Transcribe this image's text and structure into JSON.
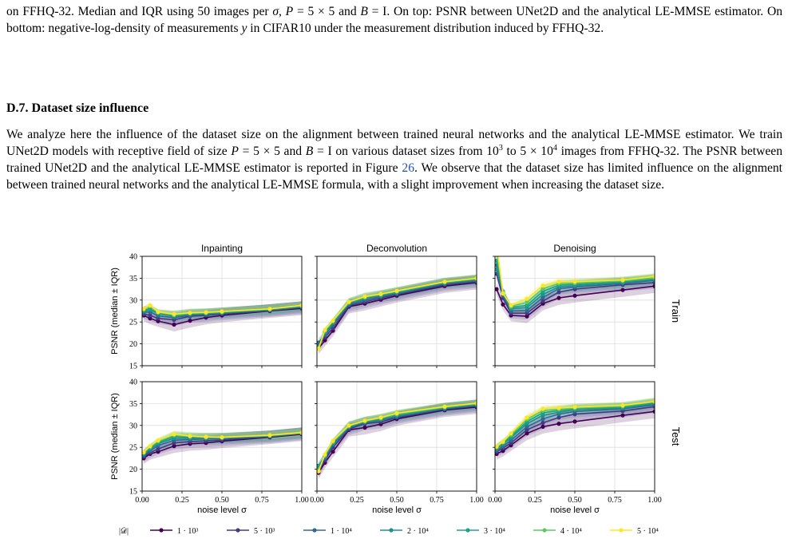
{
  "caption": {
    "seg1": "on FFHQ-32. Median and IQR using 50 images per ",
    "seg2": "σ",
    "seg3": ", ",
    "seg4": "P",
    "seg5": " = 5 × 5 and ",
    "seg6": "B",
    "seg7": " = I. On top: PSNR between UNet2D and the analytical LE-MMSE estimator. On bottom: negative-log-density of measurements ",
    "seg8": "y",
    "seg9": " in CIFAR10 under the measurement distribution induced by FFHQ-32."
  },
  "section": {
    "title": "D.7. Dataset size influence"
  },
  "paragraph": {
    "p1": "We analyze here the influence of the dataset size on the alignment between trained neural networks and the analytical LE-MMSE estimator. We train UNet2D models with receptive field of size ",
    "p2": "P",
    "p3": " = 5 × 5 and ",
    "p4": "B",
    "p5": " = I on various dataset sizes from 10",
    "p6": "3",
    "p7": " to 5 × 10",
    "p8": "4",
    "p9": " images from FFHQ-32. The PSNR between trained UNet2D and the analytical LE-MMSE estimator is reported in Figure ",
    "p10": "26",
    "p11": ". We observe that the dataset size has limited influence on the alignment between trained neural networks and the analytical LE-MMSE formula, with a slight improvement when increasing the dataset size."
  },
  "chart_data": {
    "type": "line",
    "columns": [
      "Inpainting",
      "Deconvolution",
      "Denoising"
    ],
    "rows": [
      "Train",
      "Test"
    ],
    "ylabel": "PSNR (median ± IQR)",
    "xlabel": "noise level σ",
    "x": [
      0.01,
      0.05,
      0.1,
      0.2,
      0.3,
      0.4,
      0.5,
      0.8,
      1.0
    ],
    "xlim": [
      0,
      1
    ],
    "ylim": [
      15,
      40
    ],
    "xticks": [
      "0.00",
      "0.25",
      "0.50",
      "0.75",
      "1.00"
    ],
    "yticks": [
      "15",
      "20",
      "25",
      "30",
      "35",
      "40"
    ],
    "grid": true,
    "legend": {
      "position": "bottom",
      "title": "|𝒟|"
    },
    "series": [
      {
        "name": "1 · 10³",
        "color": "#440154",
        "panels": [
          [
            26.5,
            25.8,
            25.2,
            24.4,
            25.3,
            26.0,
            26.5,
            27.5,
            28.1
          ],
          [
            19.0,
            20.8,
            23.0,
            28.5,
            29.2,
            30.1,
            31.0,
            33.2,
            34.0
          ],
          [
            32.5,
            29.0,
            26.5,
            26.3,
            29.2,
            30.5,
            31.0,
            32.3,
            33.2
          ],
          [
            22.5,
            23.5,
            24.0,
            25.3,
            25.8,
            26.0,
            26.4,
            27.3,
            28.0
          ],
          [
            19.2,
            21.5,
            24.0,
            29.0,
            29.5,
            30.3,
            31.5,
            33.5,
            34.2
          ],
          [
            23.5,
            24.2,
            25.5,
            28.2,
            29.7,
            30.4,
            30.9,
            32.3,
            33.2
          ]
        ]
      },
      {
        "name": "5 · 10³",
        "color": "#443983",
        "panels": [
          [
            26.8,
            26.5,
            25.8,
            25.5,
            26.3,
            26.5,
            26.8,
            27.6,
            28.3
          ],
          [
            19.6,
            21.5,
            23.6,
            28.7,
            29.6,
            30.5,
            31.3,
            33.5,
            34.2
          ],
          [
            36.0,
            30.5,
            27.0,
            27.0,
            29.8,
            31.8,
            32.5,
            33.5,
            34.0
          ],
          [
            22.9,
            23.8,
            24.6,
            26.0,
            26.3,
            26.5,
            26.7,
            27.4,
            28.1
          ],
          [
            19.5,
            22.0,
            25.0,
            29.2,
            30.4,
            30.8,
            31.8,
            33.7,
            34.4
          ],
          [
            24.0,
            24.8,
            26.0,
            29.0,
            30.6,
            31.8,
            32.6,
            33.3,
            34.3
          ]
        ]
      },
      {
        "name": "1 · 10⁴",
        "color": "#31688e",
        "panels": [
          [
            27.2,
            27.3,
            26.4,
            26.0,
            26.5,
            26.7,
            27.0,
            27.7,
            28.4
          ],
          [
            20.3,
            22.0,
            24.3,
            29.0,
            30.0,
            30.8,
            31.5,
            33.7,
            34.4
          ],
          [
            38.0,
            31.0,
            27.5,
            27.6,
            30.6,
            32.6,
            33.0,
            33.8,
            34.5
          ],
          [
            23.2,
            24.2,
            25.4,
            26.6,
            26.8,
            26.9,
            27.0,
            27.5,
            28.2
          ],
          [
            20.5,
            22.5,
            25.6,
            29.5,
            30.6,
            31.2,
            32.0,
            33.8,
            34.6
          ],
          [
            24.3,
            25.2,
            26.6,
            29.7,
            31.5,
            32.6,
            33.2,
            33.8,
            34.7
          ]
        ]
      },
      {
        "name": "2 · 10⁴",
        "color": "#21908d",
        "panels": [
          [
            27.5,
            27.8,
            26.9,
            26.3,
            26.8,
            26.9,
            27.1,
            27.8,
            28.5
          ],
          [
            19.4,
            22.5,
            24.8,
            29.2,
            30.4,
            31.0,
            31.7,
            33.9,
            34.6
          ],
          [
            37.0,
            31.5,
            28.0,
            28.3,
            31.3,
            33.0,
            33.3,
            34.0,
            34.7
          ],
          [
            23.5,
            24.6,
            25.8,
            27.1,
            27.1,
            27.1,
            27.1,
            27.6,
            28.3
          ],
          [
            20.8,
            22.9,
            25.9,
            29.7,
            30.8,
            31.4,
            32.2,
            34.0,
            34.7
          ],
          [
            24.7,
            25.7,
            27.2,
            30.4,
            32.3,
            33.0,
            33.6,
            34.0,
            35.0
          ]
        ]
      },
      {
        "name": "3 · 10⁴",
        "color": "#1fa187",
        "panels": [
          [
            27.7,
            28.0,
            27.0,
            26.5,
            26.9,
            27.0,
            27.2,
            27.9,
            28.6
          ],
          [
            19.2,
            22.8,
            25.0,
            29.4,
            30.6,
            31.2,
            31.9,
            34.0,
            34.8
          ],
          [
            39.0,
            32.0,
            28.3,
            28.8,
            32.0,
            33.4,
            33.6,
            34.2,
            34.9
          ],
          [
            23.7,
            24.9,
            26.1,
            27.5,
            27.3,
            27.2,
            27.2,
            27.7,
            28.3
          ],
          [
            20.5,
            23.0,
            26.1,
            29.8,
            30.9,
            31.5,
            32.4,
            34.1,
            34.8
          ],
          [
            24.9,
            26.0,
            27.5,
            30.9,
            32.9,
            33.4,
            33.8,
            34.2,
            35.2
          ]
        ]
      },
      {
        "name": "4 · 10⁴",
        "color": "#5ec962",
        "panels": [
          [
            27.9,
            28.6,
            27.2,
            26.6,
            27.0,
            27.1,
            27.3,
            28.0,
            28.7
          ],
          [
            19.0,
            23.0,
            25.2,
            29.5,
            30.7,
            31.3,
            32.0,
            34.1,
            34.9
          ],
          [
            41.0,
            31.8,
            28.5,
            29.5,
            32.6,
            33.8,
            33.9,
            34.4,
            35.1
          ],
          [
            23.8,
            25.1,
            26.4,
            27.8,
            27.5,
            27.3,
            27.3,
            27.7,
            28.3
          ],
          [
            19.8,
            23.2,
            26.3,
            29.9,
            31.0,
            31.7,
            32.6,
            34.2,
            35.0
          ],
          [
            25.1,
            26.2,
            27.9,
            31.4,
            33.4,
            33.7,
            34.0,
            34.4,
            35.4
          ]
        ]
      },
      {
        "name": "5 · 10⁴",
        "color": "#fde725",
        "panels": [
          [
            28.0,
            28.8,
            27.3,
            26.8,
            27.1,
            27.2,
            27.4,
            28.0,
            28.8
          ],
          [
            18.9,
            23.2,
            25.3,
            29.6,
            30.8,
            31.4,
            32.1,
            34.2,
            35.0
          ],
          [
            43.0,
            31.5,
            28.8,
            30.3,
            33.3,
            34.2,
            34.2,
            34.6,
            35.4
          ],
          [
            23.9,
            25.3,
            26.6,
            28.0,
            27.6,
            27.4,
            27.3,
            27.8,
            28.4
          ],
          [
            19.5,
            23.4,
            26.5,
            30.0,
            31.1,
            31.8,
            32.8,
            34.3,
            35.1
          ],
          [
            25.2,
            26.3,
            28.2,
            31.8,
            33.8,
            34.0,
            34.2,
            34.6,
            35.5
          ]
        ]
      }
    ]
  }
}
